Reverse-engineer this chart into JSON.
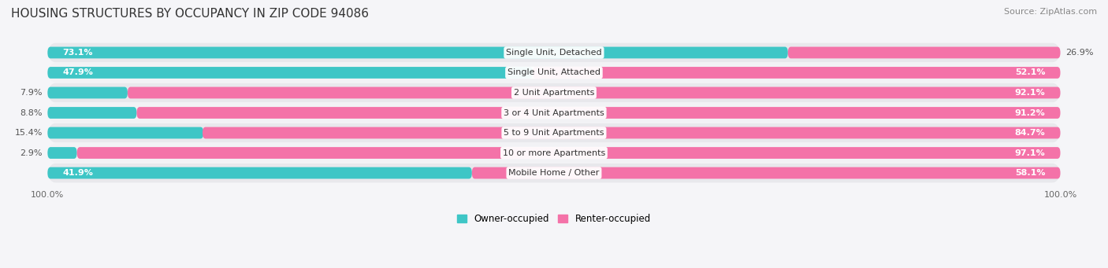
{
  "title": "HOUSING STRUCTURES BY OCCUPANCY IN ZIP CODE 94086",
  "source": "Source: ZipAtlas.com",
  "categories": [
    "Single Unit, Detached",
    "Single Unit, Attached",
    "2 Unit Apartments",
    "3 or 4 Unit Apartments",
    "5 to 9 Unit Apartments",
    "10 or more Apartments",
    "Mobile Home / Other"
  ],
  "owner_pct": [
    73.1,
    47.9,
    7.9,
    8.8,
    15.4,
    2.9,
    41.9
  ],
  "renter_pct": [
    26.9,
    52.1,
    92.1,
    91.2,
    84.7,
    97.1,
    58.1
  ],
  "owner_color": "#3ec6c6",
  "renter_color": "#f472a8",
  "row_bg_even": "#e8e8ec",
  "row_bg_odd": "#f2f2f5",
  "label_font_size": 8.0,
  "title_font_size": 11,
  "source_font_size": 8,
  "bar_height": 0.58,
  "legend_owner": "Owner-occupied",
  "legend_renter": "Renter-occupied",
  "axis_bg": "#f5f5f8"
}
